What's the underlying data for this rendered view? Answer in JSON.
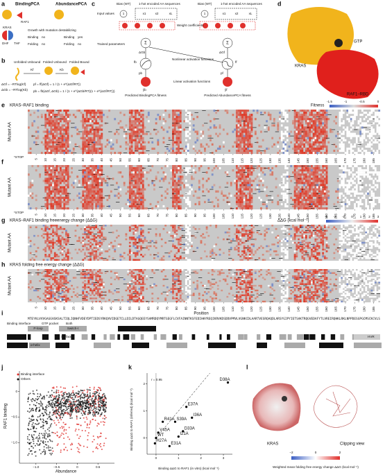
{
  "panel_labels": [
    "a",
    "b",
    "c",
    "d",
    "e",
    "f",
    "g",
    "h",
    "i",
    "j",
    "k",
    "l"
  ],
  "a": {
    "binding_title": "BindingPCA",
    "abundance_title": "AbundancePCA",
    "kras": "KRAS",
    "raf1": "RAF1",
    "dhf": "DHF",
    "thf": "THF",
    "growth": "Growth with mutation destabilizing",
    "binding": "Binding",
    "folding": "Folding",
    "no": "no",
    "yes": "yes"
  },
  "b": {
    "unfolded": "Unfolded Unbound",
    "folded_unbound": "Folded Unbound",
    "folded_bound": "Folded Bound",
    "kf": "Kf",
    "kb": "Kb",
    "eq1": "ΔGf = −RTlog(Kf)",
    "eq2": "ΔGb = −RTlog(Kb)",
    "eq3": "pf = ff(ΔGf) = 1 / (1 + e^(ΔGf/RT))",
    "eq4": "pb = fb(ΔGf, ΔGb) = 1 / (1 + e^(ΔGb/RT)(1 + e^(ΔGf/RT)))"
  },
  "c": {
    "input": "Input values",
    "bias": "Bias (WT)",
    "onehot": "1-hot encoded AA sequences",
    "weights": "Weight coefficients",
    "trained": "Trained parameters",
    "nonlinear": "Nonlinear activation functions",
    "linear": "Linear activation functions",
    "pred_b": "Predicted BindingPCA fitness",
    "pred_f": "Predicted AbundancePCA fitness",
    "one": "1",
    "x1": "x1",
    "x2": "x2",
    "xl": "xL",
    "sum": "Σ",
    "dgb": "ΔGb",
    "dgf": "ΔGf",
    "fb": "fb",
    "ff": "ff",
    "pb": "pb",
    "pf": "pf",
    "yb": "ŷb",
    "yf": "ŷf"
  },
  "d": {
    "gtp": "GTP",
    "kras": "KRAS",
    "raf": "RAF1–RBD"
  },
  "heat": {
    "e_title": "KRAS–RAF1 binding",
    "g_title": "KRAS–RAF1 binding freeenergy change (ΔΔG)",
    "h_title": "KRAS folding free energy change (ΔΔG)",
    "mutant": "Mutant AA",
    "stop": "*STOP",
    "fitness": "Fitness",
    "fitness_ticks": [
      "-1.5",
      "-1",
      "-0.5",
      "0"
    ],
    "ddg": "ΔΔG (kcal mol⁻¹)",
    "ddg_ticks": [
      "-3",
      "-2",
      "-1",
      "0",
      "1",
      "2",
      "3"
    ],
    "positions": [
      5,
      10,
      15,
      20,
      25,
      30,
      35,
      40,
      45,
      50,
      55,
      60,
      65,
      70,
      75,
      80,
      85,
      90,
      95,
      100,
      105,
      110,
      115,
      120,
      125,
      130,
      135,
      140,
      145,
      150,
      155,
      160,
      165,
      170,
      175,
      180,
      185
    ]
  },
  "i": {
    "position": "Position",
    "sequence": "MTEYKLVVVGAGGVGKSALTIQLIQNHFVDEYDPTIEDSYRKQVVIDGETCLLDILDTAGQEEYSAMRDQYMRTGEGFLCVFAINNTKSFEDIHHYREQIKRVKDSDDVPMVLVGNKCDLAARTVESRQAQDLARSYGIPYIETSAKTRQGVEDAFYTLVREIRQHKLRKLNPPDESGPGCMSCKCVLS",
    "binding_interface": "Binding interface",
    "gtp_pocket": "GTP pocket",
    "both": "Both",
    "ploop": "P-loop",
    "switch1": "Switch-I",
    "switch2": "Switch-II",
    "core": "Core",
    "surface": "Surface",
    "hvr": "HVR",
    "strand": "β-strand",
    "helix": "α-helix"
  },
  "j": {
    "legend_binding": "Binding interface",
    "legend_others": "Others",
    "ylabel": "RAF1 binding",
    "xlabel": "Abundance",
    "xlim": [
      -1.4,
      0.9
    ],
    "ylim": [
      -1.4,
      0.4
    ],
    "xticks": [
      {
        "value": -1,
        "label": "−1.0"
      },
      {
        "value": -0.5,
        "label": "−0.5"
      },
      0,
      0.5
    ],
    "yticks": [
      0,
      {
        "value": -0.5,
        "label": "−0.5"
      },
      {
        "value": -1,
        "label": "−1.0"
      }
    ]
  },
  "k": {
    "r": "r = 0.95",
    "ylabel": "Binding ΔΔG to RAF1 (inferred) (kcal mol⁻¹)",
    "xlabel": "Binding ΔΔG to RAF1 (in vitro) (kcal mol⁻¹)",
    "xlim": [
      -0.4,
      3.4
    ],
    "ylim": [
      -0.6,
      2.4
    ],
    "xticks": [
      0,
      1,
      2,
      3
    ],
    "yticks": [
      0,
      1,
      2
    ],
    "points": [
      {
        "name": "D38A",
        "x": 3.2,
        "y": 2.05
      },
      {
        "name": "E37A",
        "x": 1.35,
        "y": 1.15
      },
      {
        "name": "I36A",
        "x": 1.6,
        "y": 0.75
      },
      {
        "name": "R41A",
        "x": 0.3,
        "y": 0.6
      },
      {
        "name": "S39A",
        "x": 0.85,
        "y": 0.6
      },
      {
        "name": "D33A",
        "x": 1.2,
        "y": 0.25
      },
      {
        "name": "I21A",
        "x": 1.0,
        "y": 0.05
      },
      {
        "name": "V45A",
        "x": 0.1,
        "y": 0.2
      },
      {
        "name": "WT",
        "x": 0,
        "y": 0
      },
      {
        "name": "H27A",
        "x": -0.05,
        "y": -0.2
      },
      {
        "name": "E31A",
        "x": 0.6,
        "y": -0.3
      }
    ]
  },
  "l": {
    "kras": "KRAS",
    "clip": "Clipping view",
    "cbar_ticks": [
      {
        "value": -2,
        "label": "−2"
      },
      0,
      2
    ],
    "cbar_label": "Weighted mean folding free energy change ΔΔG (kcal mol⁻¹)"
  }
}
